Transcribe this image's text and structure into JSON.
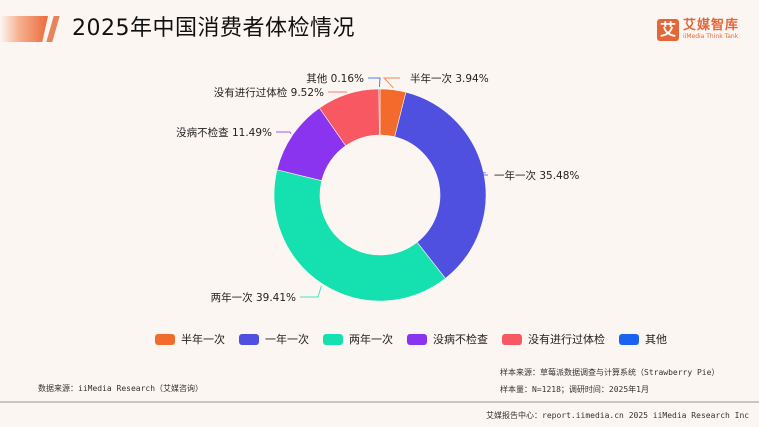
{
  "header": {
    "title": "2025年中国消费者体检情况",
    "logo_mark": "艾",
    "logo_cn": "艾媒智库",
    "logo_en": "iiMedia Think Tank"
  },
  "chart_data": {
    "type": "pie",
    "subtype": "donut",
    "title": "2025年中国消费者体检情况",
    "categories": [
      "半年一次",
      "一年一次",
      "两年一次",
      "没病不检查",
      "没有进行过体检",
      "其他"
    ],
    "values": [
      3.94,
      35.48,
      39.41,
      11.49,
      9.52,
      0.16
    ],
    "unit": "%",
    "colors": [
      "#f26b2d",
      "#5050e0",
      "#14e0b0",
      "#8a34f0",
      "#f75862",
      "#1a63f0"
    ],
    "labels": [
      "半年一次 3.94%",
      "一年一次 35.48%",
      "两年一次 39.41%",
      "没病不检查 11.49%",
      "没有进行过体检 9.52%",
      "其他 0.16%"
    ],
    "legend_position": "bottom"
  },
  "footer": {
    "data_source": "数据来源：iiMedia Research（艾媒咨询）",
    "sample_source": "样本来源：草莓派数据调查与计算系统（Strawberry Pie）",
    "sample_info": "样本量：N=1218；调研时间：2025年1月",
    "report_center": "艾媒报告中心：report.iimedia.cn   2025 iiMedia Research Inc"
  }
}
